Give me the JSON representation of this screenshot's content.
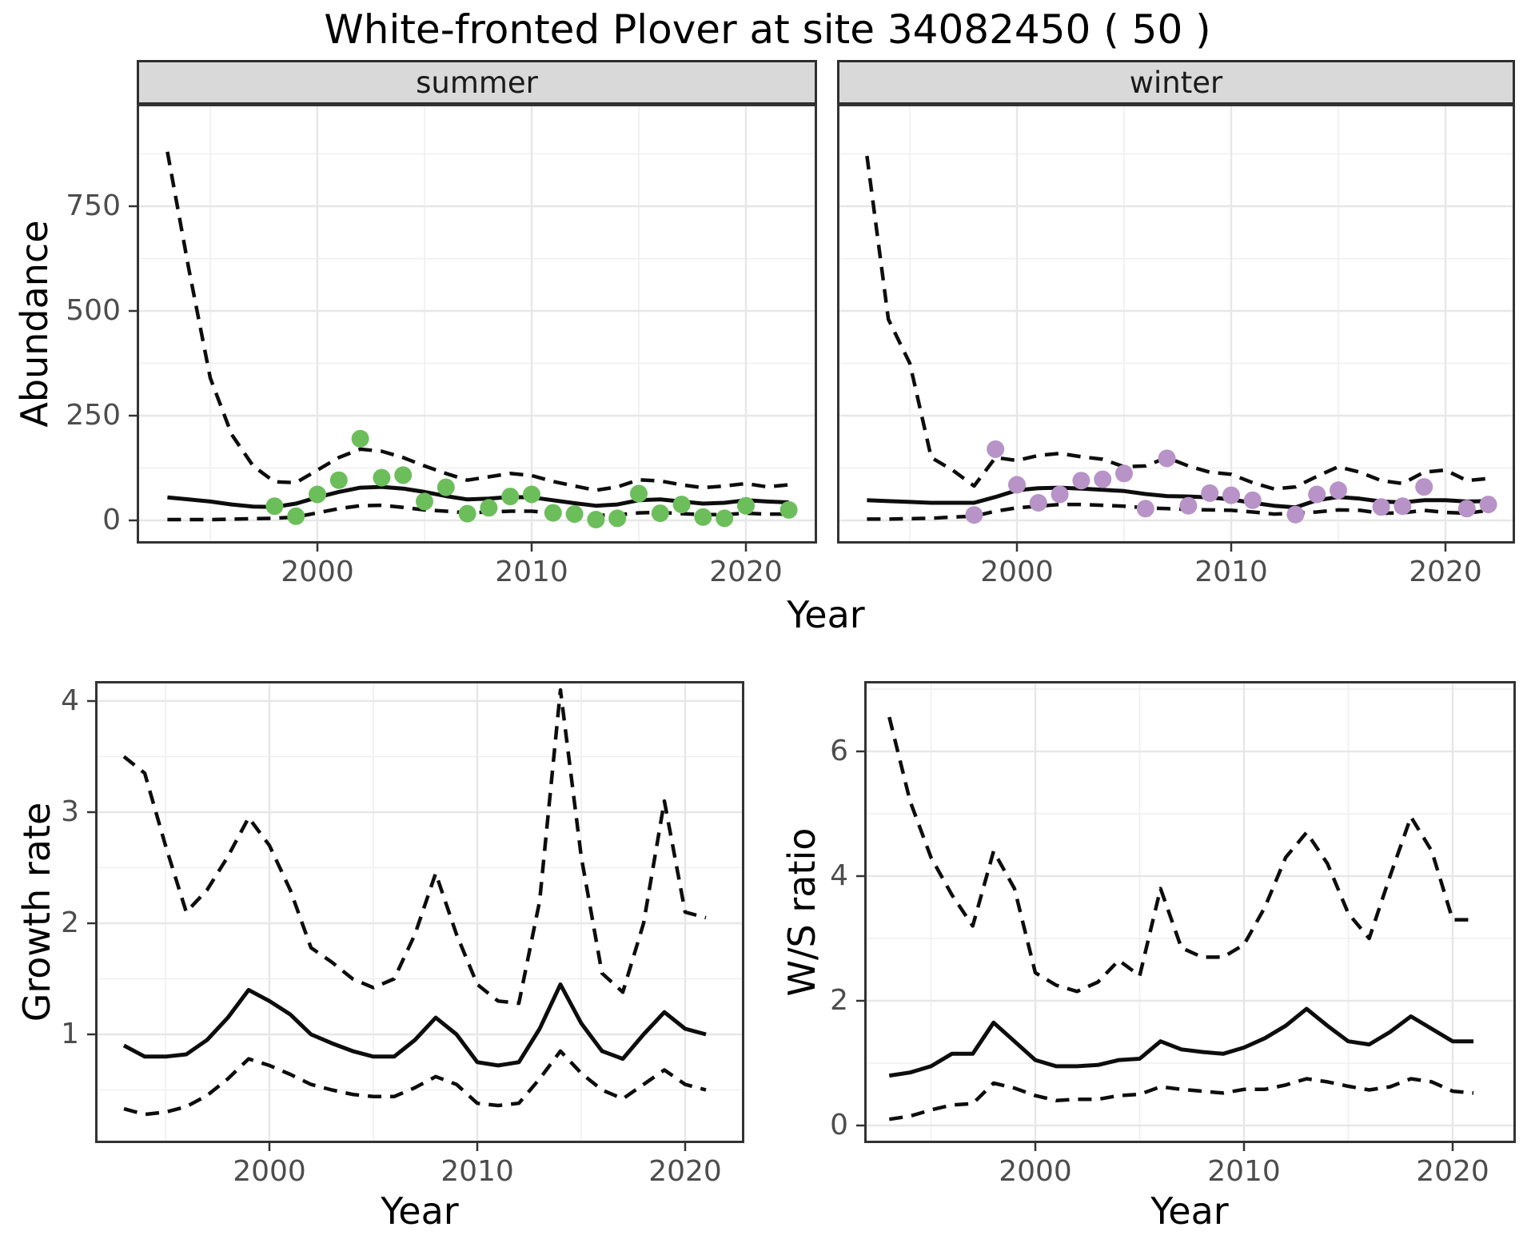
{
  "title": "White-fronted Plover at site 34082450 ( 50 )",
  "facets": [
    {
      "label": "summer"
    },
    {
      "label": "winter"
    }
  ],
  "axis_titles": {
    "abundance_y": "Abundance",
    "top_x": "Year",
    "growth_y": "Growth rate",
    "growth_x": "Year",
    "ws_y": "W/S ratio",
    "ws_x": "Year"
  },
  "colors": {
    "summer_point": "#6CBE5B",
    "winter_point": "#B793C7",
    "line": "#0d0d0d",
    "strip_bg": "#D9D9D9",
    "panel_border": "#333333",
    "grid_major": "#E7E7E7",
    "tick_label": "#4D4D4D"
  },
  "chart_data": [
    {
      "id": "summer",
      "type": "line",
      "facet": "summer",
      "ylabel": "Abundance",
      "xlabel": "Year",
      "xlim": [
        1991.6,
        2023.3
      ],
      "ylim": [
        -50,
        990
      ],
      "grid": true,
      "x_ticks": [
        2000,
        2010,
        2020
      ],
      "x_tick_labels": [
        "2000",
        "2010",
        "2020"
      ],
      "x_minor": [
        1995,
        2005,
        2015
      ],
      "y_ticks": [
        0,
        250,
        500,
        750
      ],
      "y_tick_labels": [
        "0",
        "250",
        "500",
        "750"
      ],
      "y_minor": [
        125,
        375,
        625,
        875
      ],
      "years": [
        1993,
        1994,
        1995,
        1996,
        1997,
        1998,
        1999,
        2000,
        2001,
        2002,
        2003,
        2004,
        2005,
        2006,
        2007,
        2008,
        2009,
        2010,
        2011,
        2012,
        2013,
        2014,
        2015,
        2016,
        2017,
        2018,
        2019,
        2020,
        2021,
        2022
      ],
      "fit": [
        55,
        50,
        45,
        38,
        33,
        32,
        40,
        55,
        68,
        78,
        80,
        76,
        68,
        58,
        50,
        52,
        56,
        55,
        48,
        41,
        35,
        38,
        48,
        50,
        45,
        40,
        42,
        48,
        45,
        43
      ],
      "upper95": [
        880,
        600,
        340,
        205,
        130,
        92,
        90,
        120,
        150,
        170,
        165,
        150,
        130,
        112,
        96,
        104,
        112,
        107,
        93,
        82,
        72,
        80,
        97,
        94,
        85,
        78,
        82,
        88,
        80,
        85
      ],
      "lower95": [
        2,
        2,
        2,
        3,
        4,
        5,
        8,
        18,
        28,
        35,
        36,
        31,
        25,
        22,
        18,
        20,
        22,
        22,
        18,
        15,
        12,
        13,
        18,
        19,
        16,
        14,
        14,
        17,
        15,
        15
      ],
      "points": {
        "years": [
          1998,
          1999,
          2000,
          2001,
          2002,
          2003,
          2004,
          2005,
          2006,
          2007,
          2008,
          2009,
          2010,
          2011,
          2012,
          2013,
          2014,
          2015,
          2016,
          2017,
          2018,
          2019,
          2020,
          2022
        ],
        "values": [
          34,
          10,
          62,
          96,
          195,
          102,
          108,
          45,
          79,
          16,
          30,
          57,
          62,
          18,
          15,
          2,
          5,
          64,
          17,
          38,
          8,
          5,
          35,
          25
        ]
      },
      "point_color": "#6CBE5B"
    },
    {
      "id": "winter",
      "type": "line",
      "facet": "winter",
      "ylabel": "Abundance",
      "xlabel": "Year",
      "xlim": [
        1991.6,
        2023.3
      ],
      "ylim": [
        -50,
        990
      ],
      "grid": true,
      "x_ticks": [
        2000,
        2010,
        2020
      ],
      "x_tick_labels": [
        "2000",
        "2010",
        "2020"
      ],
      "x_minor": [
        1995,
        2005,
        2015
      ],
      "y_ticks": [
        0,
        250,
        500,
        750
      ],
      "y_tick_labels": [
        "0",
        "250",
        "500",
        "750"
      ],
      "y_minor": [
        125,
        375,
        625,
        875
      ],
      "years": [
        1993,
        1994,
        1995,
        1996,
        1997,
        1998,
        1999,
        2000,
        2001,
        2002,
        2003,
        2004,
        2005,
        2006,
        2007,
        2008,
        2009,
        2010,
        2011,
        2012,
        2013,
        2014,
        2015,
        2016,
        2017,
        2018,
        2019,
        2020,
        2021,
        2022
      ],
      "fit": [
        48,
        46,
        44,
        42,
        42,
        42,
        56,
        72,
        77,
        78,
        76,
        73,
        70,
        63,
        58,
        57,
        55,
        50,
        42,
        35,
        31,
        48,
        56,
        52,
        45,
        43,
        48,
        48,
        45,
        46
      ],
      "upper95": [
        870,
        480,
        375,
        150,
        120,
        82,
        150,
        143,
        155,
        160,
        152,
        146,
        128,
        130,
        150,
        130,
        115,
        110,
        90,
        75,
        80,
        105,
        128,
        115,
        95,
        88,
        115,
        120,
        95,
        100
      ],
      "lower95": [
        3,
        3,
        4,
        5,
        8,
        10,
        22,
        30,
        34,
        38,
        38,
        36,
        34,
        30,
        28,
        26,
        25,
        24,
        20,
        15,
        17,
        20,
        25,
        24,
        17,
        18,
        24,
        19,
        17,
        24
      ],
      "points": {
        "years": [
          1998,
          1999,
          2000,
          2001,
          2002,
          2003,
          2004,
          2005,
          2006,
          2007,
          2008,
          2009,
          2010,
          2011,
          2013,
          2014,
          2015,
          2017,
          2018,
          2019,
          2021,
          2022
        ],
        "values": [
          13,
          170,
          85,
          42,
          62,
          95,
          98,
          112,
          28,
          148,
          35,
          65,
          60,
          48,
          14,
          62,
          72,
          32,
          34,
          80,
          28,
          38
        ]
      },
      "point_color": "#B793C7"
    },
    {
      "id": "growth",
      "type": "line",
      "ylabel": "Growth rate",
      "xlabel": "Year",
      "xlim": [
        1991.8,
        2023.2
      ],
      "ylim": [
        0.02,
        4.18
      ],
      "grid": true,
      "x_ticks": [
        2000,
        2010,
        2020
      ],
      "x_tick_labels": [
        "2000",
        "2010",
        "2020"
      ],
      "x_minor": [
        1995,
        2005,
        2015
      ],
      "y_ticks": [
        1,
        2,
        3,
        4
      ],
      "y_tick_labels": [
        "1",
        "2",
        "3",
        "4"
      ],
      "y_minor": [
        0.5,
        1.5,
        2.5,
        3.5
      ],
      "years": [
        1993,
        1994,
        1995,
        1996,
        1997,
        1998,
        1999,
        2000,
        2001,
        2002,
        2003,
        2004,
        2005,
        2006,
        2007,
        2008,
        2009,
        2010,
        2011,
        2012,
        2013,
        2014,
        2015,
        2016,
        2017,
        2018,
        2019,
        2020,
        2021
      ],
      "fit": [
        0.9,
        0.8,
        0.8,
        0.82,
        0.95,
        1.15,
        1.4,
        1.3,
        1.18,
        1.0,
        0.92,
        0.85,
        0.8,
        0.8,
        0.95,
        1.15,
        1.0,
        0.75,
        0.72,
        0.75,
        1.05,
        1.45,
        1.1,
        0.85,
        0.78,
        1.0,
        1.2,
        1.05,
        1.0
      ],
      "upper95": [
        3.5,
        3.35,
        2.7,
        2.1,
        2.3,
        2.6,
        2.95,
        2.7,
        2.3,
        1.78,
        1.65,
        1.5,
        1.42,
        1.5,
        1.9,
        2.45,
        1.9,
        1.45,
        1.3,
        1.28,
        2.2,
        4.1,
        2.6,
        1.55,
        1.38,
        2.0,
        3.1,
        2.1,
        2.05
      ],
      "lower95": [
        0.33,
        0.28,
        0.3,
        0.35,
        0.45,
        0.6,
        0.78,
        0.72,
        0.64,
        0.55,
        0.5,
        0.46,
        0.44,
        0.44,
        0.52,
        0.62,
        0.55,
        0.38,
        0.36,
        0.38,
        0.6,
        0.85,
        0.65,
        0.5,
        0.42,
        0.55,
        0.68,
        0.55,
        0.5
      ]
    },
    {
      "id": "ws",
      "type": "line",
      "ylabel": "W/S ratio",
      "xlabel": "Year",
      "xlim": [
        1991.8,
        2023.2
      ],
      "ylim": [
        -0.28,
        7.13
      ],
      "grid": true,
      "x_ticks": [
        2000,
        2010,
        2020
      ],
      "x_tick_labels": [
        "2000",
        "2010",
        "2020"
      ],
      "x_minor": [
        1995,
        2005,
        2015
      ],
      "y_ticks": [
        0,
        2,
        4,
        6
      ],
      "y_tick_labels": [
        "0",
        "2",
        "4",
        "6"
      ],
      "y_minor": [
        1,
        3,
        5,
        7
      ],
      "years": [
        1993,
        1994,
        1995,
        1996,
        1997,
        1998,
        1999,
        2000,
        2001,
        2002,
        2003,
        2004,
        2005,
        2006,
        2007,
        2008,
        2009,
        2010,
        2011,
        2012,
        2013,
        2014,
        2015,
        2016,
        2017,
        2018,
        2019,
        2020,
        2021
      ],
      "fit": [
        0.8,
        0.85,
        0.95,
        1.15,
        1.15,
        1.65,
        1.35,
        1.05,
        0.95,
        0.95,
        0.97,
        1.05,
        1.07,
        1.35,
        1.22,
        1.18,
        1.15,
        1.25,
        1.4,
        1.6,
        1.87,
        1.6,
        1.35,
        1.3,
        1.5,
        1.75,
        1.55,
        1.35,
        1.35
      ],
      "upper95": [
        6.55,
        5.2,
        4.3,
        3.7,
        3.2,
        4.4,
        3.8,
        2.45,
        2.25,
        2.15,
        2.3,
        2.65,
        2.4,
        3.8,
        2.85,
        2.7,
        2.7,
        2.9,
        3.5,
        4.3,
        4.7,
        4.2,
        3.4,
        3.0,
        4.0,
        4.95,
        4.4,
        3.3,
        3.3
      ],
      "lower95": [
        0.1,
        0.15,
        0.25,
        0.33,
        0.35,
        0.68,
        0.6,
        0.48,
        0.4,
        0.42,
        0.42,
        0.48,
        0.5,
        0.62,
        0.58,
        0.55,
        0.52,
        0.58,
        0.58,
        0.65,
        0.75,
        0.7,
        0.63,
        0.57,
        0.62,
        0.75,
        0.7,
        0.55,
        0.52
      ]
    }
  ]
}
